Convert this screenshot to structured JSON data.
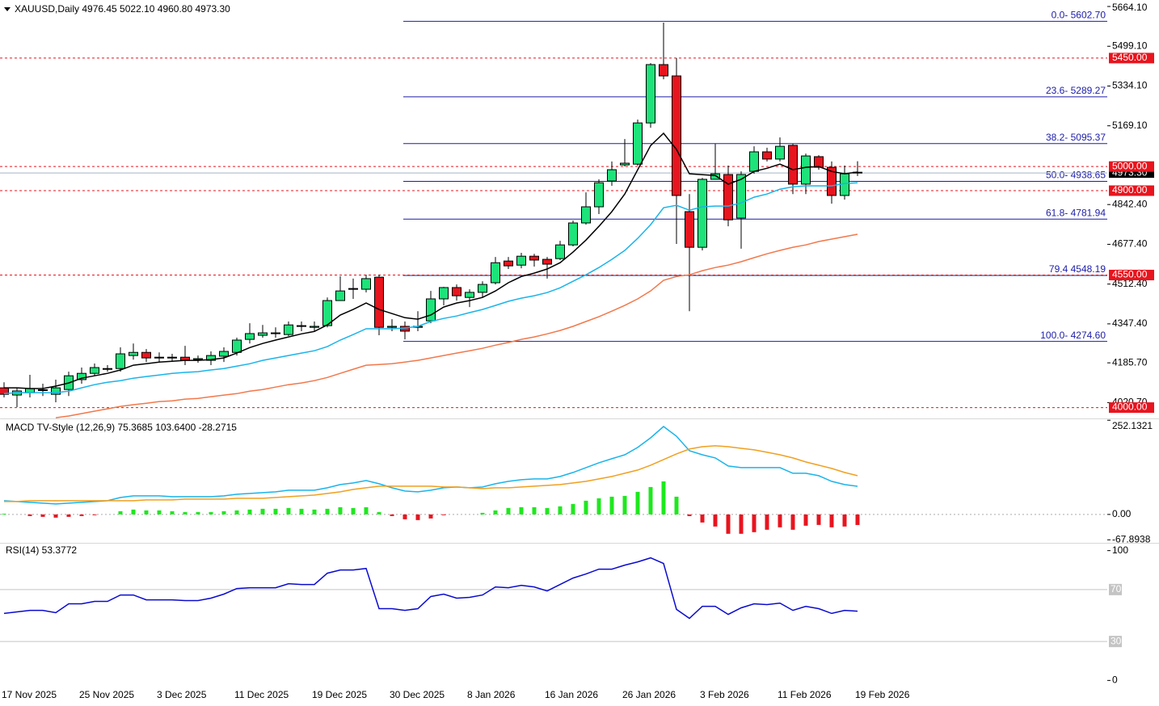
{
  "chart_data": [
    {
      "type": "candlestick",
      "title": "XAUUSD,Daily  4976.45 5022.10 4960.80 4973.30",
      "categories": [
        "17 Nov 2025",
        null,
        null,
        null,
        null,
        null,
        "25 Nov 2025",
        null,
        null,
        null,
        null,
        null,
        "3 Dec 2025",
        null,
        null,
        null,
        null,
        null,
        "11 Dec 2025",
        null,
        null,
        null,
        null,
        null,
        "19 Dec 2025",
        null,
        null,
        null,
        null,
        null,
        "30 Dec 2025",
        null,
        null,
        null,
        null,
        null,
        "8 Jan 2026",
        null,
        null,
        null,
        null,
        null,
        "16 Jan 2026",
        null,
        null,
        null,
        null,
        null,
        "26 Jan 2026",
        null,
        null,
        null,
        null,
        null,
        "3 Feb 2026",
        null,
        null,
        null,
        null,
        null,
        "11 Feb 2026",
        null,
        null,
        null,
        null,
        null,
        "19 Feb 2026"
      ],
      "open": [
        4082,
        4052,
        4062,
        4072,
        4055,
        4075,
        4116,
        4142,
        4162,
        4162,
        4216,
        4229,
        4209,
        4206,
        4209,
        4199,
        4196,
        4213,
        4229,
        4283,
        4300,
        4307,
        4303,
        4337,
        4333,
        4340,
        4444,
        4491,
        4491,
        4541,
        4333,
        4337,
        4333,
        4360,
        4451,
        4498,
        4457,
        4478,
        4518,
        4608,
        4591,
        4628,
        4615,
        4618,
        4675,
        4766,
        4833,
        4940,
        5007,
        5010,
        5181,
        5423,
        5376,
        4813,
        4665,
        4947,
        4967,
        4786,
        4980,
        5061,
        5031,
        5088,
        4927,
        5041,
        4997,
        4880,
        4976.45
      ],
      "high": [
        4105,
        4082,
        4136,
        4099,
        4116,
        4149,
        4166,
        4183,
        4176,
        4250,
        4266,
        4243,
        4229,
        4223,
        4256,
        4216,
        4233,
        4250,
        4290,
        4350,
        4343,
        4333,
        4357,
        4357,
        4357,
        4457,
        4545,
        4535,
        4551,
        4551,
        4367,
        4357,
        4400,
        4484,
        4501,
        4511,
        4491,
        4524,
        4625,
        4625,
        4642,
        4638,
        4625,
        4692,
        4776,
        4893,
        4947,
        5021,
        5114,
        5195,
        5429,
        5597,
        5450,
        4886,
        4953,
        5094,
        5004,
        4980,
        5084,
        5078,
        5121,
        5094,
        5054,
        5047,
        5021,
        5004,
        5022.1
      ],
      "low": [
        4042,
        4002,
        4042,
        4048,
        4022,
        4048,
        4099,
        4132,
        4149,
        4149,
        4199,
        4189,
        4189,
        4193,
        4176,
        4186,
        4176,
        4189,
        4216,
        4266,
        4290,
        4290,
        4297,
        4317,
        4317,
        4333,
        4444,
        4451,
        4478,
        4300,
        4317,
        4283,
        4317,
        4350,
        4424,
        4444,
        4417,
        4457,
        4511,
        4575,
        4578,
        4585,
        4535,
        4612,
        4669,
        4759,
        4803,
        4920,
        5000,
        5004,
        5161,
        5362,
        4679,
        4400,
        4652,
        4947,
        4752,
        4659,
        4970,
        5021,
        5021,
        4886,
        4886,
        4987,
        4846,
        4863,
        4960.8
      ],
      "close": [
        4055,
        4069,
        4079,
        4074,
        4082,
        4132,
        4142,
        4166,
        4159,
        4223,
        4229,
        4206,
        4206,
        4209,
        4196,
        4203,
        4216,
        4233,
        4280,
        4307,
        4310,
        4310,
        4343,
        4340,
        4337,
        4444,
        4484,
        4494,
        4535,
        4333,
        4337,
        4317,
        4337,
        4451,
        4498,
        4464,
        4478,
        4511,
        4601,
        4588,
        4628,
        4612,
        4595,
        4675,
        4766,
        4833,
        4933,
        4987,
        5014,
        5181,
        5423,
        5376,
        4880,
        4665,
        4947,
        4970,
        4779,
        4967,
        5061,
        5031,
        5084,
        4927,
        5044,
        4997,
        4880,
        4970,
        4973.3
      ],
      "up_color": "#1de37a",
      "down_color": "#e8141e",
      "moving_averages": [
        {
          "color": "#000000",
          "values": [
            4082,
            4082,
            4079,
            4079,
            4089,
            4102,
            4122,
            4132,
            4142,
            4156,
            4176,
            4182,
            4189,
            4192,
            4196,
            4196,
            4199,
            4206,
            4226,
            4249,
            4266,
            4280,
            4293,
            4306,
            4316,
            4343,
            4384,
            4407,
            4434,
            4407,
            4390,
            4373,
            4367,
            4384,
            4417,
            4434,
            4444,
            4457,
            4484,
            4518,
            4544,
            4558,
            4575,
            4601,
            4645,
            4695,
            4752,
            4813,
            4886,
            4987,
            5087,
            5138,
            5071,
            4970,
            4966,
            4963,
            4927,
            4947,
            4980,
            4993,
            5010,
            4987,
            4997,
            5000,
            4980,
            4970,
            4977
          ]
        },
        {
          "color": "#1ab4ea",
          "values": [
            4058,
            4062,
            4062,
            4062,
            4062,
            4068,
            4082,
            4095,
            4105,
            4112,
            4122,
            4129,
            4135,
            4142,
            4146,
            4149,
            4156,
            4162,
            4172,
            4182,
            4196,
            4206,
            4216,
            4226,
            4236,
            4253,
            4280,
            4303,
            4327,
            4327,
            4327,
            4330,
            4337,
            4357,
            4370,
            4380,
            4394,
            4407,
            4424,
            4441,
            4454,
            4464,
            4477,
            4497,
            4524,
            4551,
            4581,
            4615,
            4652,
            4702,
            4759,
            4829,
            4839,
            4819,
            4833,
            4836,
            4836,
            4849,
            4873,
            4886,
            4906,
            4916,
            4920,
            4920,
            4920,
            4930,
            4933
          ]
        },
        {
          "color": "#f2784b",
          "values": [
            null,
            null,
            null,
            null,
            3958,
            3965,
            3975,
            3985,
            3995,
            4005,
            4012,
            4018,
            4025,
            4028,
            4035,
            4038,
            4045,
            4052,
            4058,
            4068,
            4075,
            4085,
            4095,
            4102,
            4112,
            4125,
            4142,
            4159,
            4176,
            4179,
            4182,
            4189,
            4196,
            4206,
            4216,
            4226,
            4236,
            4246,
            4259,
            4270,
            4283,
            4293,
            4306,
            4320,
            4337,
            4357,
            4377,
            4400,
            4424,
            4451,
            4484,
            4528,
            4544,
            4551,
            4568,
            4581,
            4591,
            4605,
            4622,
            4638,
            4652,
            4665,
            4675,
            4689,
            4699,
            4709,
            4719
          ]
        }
      ],
      "ylim": [
        3955,
        5691
      ],
      "yticks": [
        {
          "value": 5664.1,
          "label": "5664.10"
        },
        {
          "value": 5499.1,
          "label": "5499.10"
        },
        {
          "value": 5334.1,
          "label": "5334.10"
        },
        {
          "value": 5169.1,
          "label": "5169.10"
        },
        {
          "value": 4842.4,
          "label": "4842.40"
        },
        {
          "value": 4677.4,
          "label": "4677.40"
        },
        {
          "value": 4512.4,
          "label": "4512.40"
        },
        {
          "value": 4347.4,
          "label": "4347.40"
        },
        {
          "value": 4185.7,
          "label": "4185.70"
        },
        {
          "value": 4020.7,
          "label": "4020.70"
        }
      ],
      "levels": [
        {
          "value": 5450,
          "label": "5450.00"
        },
        {
          "value": 5000,
          "label": "5000.00"
        },
        {
          "value": 4900,
          "label": "4900.00"
        },
        {
          "value": 4550,
          "label": "4550.00"
        },
        {
          "value": 4000,
          "label": "4000.00"
        }
      ],
      "level_color": "#e8141e",
      "fib_levels": [
        {
          "value": 5602.7,
          "label": "0.0- 5602.70"
        },
        {
          "value": 5289.27,
          "label": "23.6- 5289.27"
        },
        {
          "value": 5095.37,
          "label": "38.2- 5095.37"
        },
        {
          "value": 4938.65,
          "label": "50.0- 4938.65"
        },
        {
          "value": 4781.94,
          "label": "61.8- 4781.94"
        },
        {
          "value": 4548.19,
          "label": "79.4 4548.19"
        },
        {
          "value": 4274.6,
          "label": "100.0- 4274.60"
        }
      ],
      "fib_color": "#1c1ca8",
      "last_price": {
        "value": 4973.3,
        "label": "4973.30"
      }
    },
    {
      "type": "macd",
      "title": "MACD TV-Style (12,26,9) 75.3685 103.6400 -28.2715",
      "histogram": {
        "up_color": "#1ee81e",
        "down_color": "#e8141e",
        "values": [
          2.1,
          0,
          -4.3,
          -6.5,
          -8.6,
          -6.5,
          -4.3,
          -2.1,
          0,
          8.7,
          13.0,
          10.8,
          10.8,
          8.6,
          6.5,
          6.5,
          6.5,
          8.7,
          10.8,
          13.0,
          15.1,
          15.1,
          17.3,
          15.1,
          13.0,
          15.1,
          19.4,
          17.2,
          19.4,
          6.5,
          -4.3,
          -13.0,
          -15.1,
          -10.8,
          -2.1,
          0,
          0,
          4.3,
          10.8,
          17.3,
          19.5,
          19.4,
          17.2,
          21.6,
          28.1,
          36.7,
          43.2,
          47.5,
          49.6,
          60.5,
          73.4,
          88.5,
          47.5,
          -4.4,
          -21.6,
          -32.4,
          -51.8,
          -51.8,
          -47.5,
          -41.0,
          -34.5,
          -41.0,
          -30.2,
          -28.1,
          -34.5,
          -32.4,
          -28.2715
        ]
      },
      "series": [
        {
          "color": "#1ab4ea",
          "values": [
            36.7,
            34.6,
            32.4,
            30.2,
            28.1,
            30.2,
            32.4,
            34.6,
            36.7,
            45.4,
            49.7,
            49.7,
            49.7,
            47.5,
            47.5,
            47.5,
            47.5,
            49.7,
            54.0,
            56.2,
            58.3,
            60.5,
            64.8,
            64.8,
            64.8,
            71.3,
            79.9,
            84.2,
            90.7,
            82.1,
            71.3,
            62.6,
            60.5,
            64.8,
            71.3,
            73.4,
            71.3,
            73.4,
            82.1,
            88.6,
            92.9,
            95.0,
            95.0,
            101.5,
            112.3,
            125.3,
            138.2,
            149.0,
            159.8,
            179.3,
            205.2,
            235.4,
            209.5,
            170.6,
            159.8,
            151.2,
            129.6,
            125.3,
            125.3,
            125.3,
            125.3,
            110.2,
            110.2,
            103.7,
            88.6,
            79.9,
            75.3685
          ]
        },
        {
          "color": "#f0a020",
          "values": [
            34.6,
            34.6,
            36.7,
            36.7,
            36.7,
            36.7,
            36.7,
            36.7,
            36.7,
            36.7,
            36.7,
            38.9,
            38.9,
            38.9,
            41.0,
            41.0,
            41.0,
            41.0,
            43.2,
            43.2,
            43.2,
            45.4,
            47.5,
            49.7,
            51.8,
            56.2,
            60.5,
            67.0,
            71.3,
            75.6,
            75.6,
            75.6,
            75.6,
            75.6,
            73.4,
            73.4,
            71.3,
            69.1,
            71.3,
            71.3,
            73.4,
            75.6,
            77.8,
            79.9,
            84.2,
            88.6,
            95.0,
            101.5,
            110.2,
            118.8,
            131.8,
            146.9,
            162.0,
            175.0,
            181.4,
            183.6,
            181.4,
            177.1,
            172.8,
            166.3,
            159.8,
            151.2,
            140.4,
            131.8,
            123.1,
            112.3,
            103.64
          ]
        }
      ],
      "ylim": [
        -76,
        257
      ],
      "yticks": [
        252.1321,
        {
          "value": 0,
          "label": "0.00"
        },
        -67.8938
      ]
    },
    {
      "type": "line",
      "title": "RSI(14) 53.3772",
      "series": [
        {
          "color": "#0a0ad0",
          "values": [
            51.6,
            52.8,
            54.0,
            54.0,
            52.2,
            59.0,
            59.0,
            60.9,
            60.9,
            65.8,
            65.8,
            62.1,
            62.1,
            62.1,
            61.5,
            61.5,
            63.4,
            66.5,
            70.8,
            71.4,
            71.4,
            71.4,
            74.5,
            73.9,
            73.9,
            82.6,
            85.1,
            85.1,
            86.3,
            55.3,
            55.3,
            54.0,
            55.3,
            64.6,
            66.5,
            63.4,
            64.0,
            65.8,
            72.0,
            71.4,
            73.3,
            72.0,
            68.9,
            73.9,
            78.9,
            82.0,
            85.7,
            85.7,
            88.8,
            91.3,
            94.4,
            90.1,
            54.7,
            47.8,
            57.1,
            57.1,
            50.9,
            55.9,
            59.0,
            58.4,
            59.6,
            54.0,
            57.1,
            55.3,
            51.6,
            54.0,
            53.3772
          ]
        }
      ],
      "ylim": [
        -6,
        106
      ],
      "yticks": [
        100,
        0
      ],
      "levels": [
        70,
        30
      ],
      "level_color": "#c4c4c4"
    }
  ]
}
